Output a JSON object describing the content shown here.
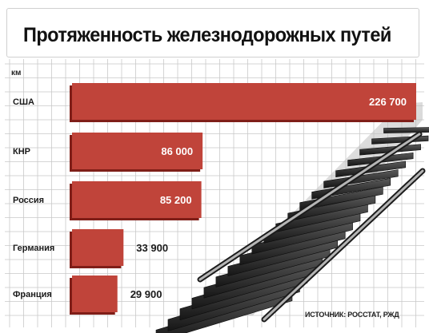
{
  "header": {
    "title": "Протяженность железнодорожных путей"
  },
  "source_note": "ИСТОЧНИК: РОССТАТ, РЖД",
  "colors": {
    "bar": "#c0443a",
    "bar_shadow": "#7f1e18",
    "grid": "#c9c9c9",
    "label_text": "#1a1a1a",
    "value_inside": "#ffffff",
    "value_outside": "#1a1a1a"
  },
  "chart_data": {
    "type": "bar",
    "orientation": "horizontal",
    "title": "Протяженность железнодорожных путей",
    "unit": "км",
    "categories": [
      "США",
      "КНР",
      "Россия",
      "Германия",
      "Франция"
    ],
    "values": [
      226700,
      86000,
      85200,
      33900,
      29900
    ],
    "value_labels": [
      "226 700",
      "86 000",
      "85 200",
      "33 900",
      "29 900"
    ],
    "xlim": [
      0,
      226700
    ],
    "grid": true,
    "legend": "none"
  }
}
